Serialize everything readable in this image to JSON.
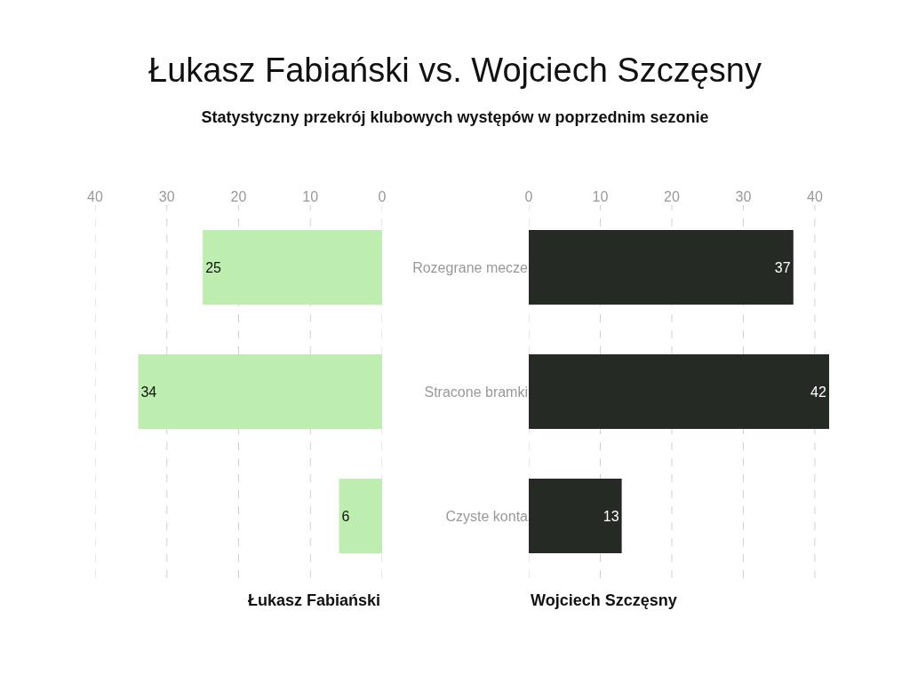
{
  "chart_data": [
    {
      "type": "bar",
      "title": "Łukasz Fabiański vs. Wojciech Szczęsny",
      "subtitle": "Statystyczny przekrój klubowych występów w poprzednim sezonie",
      "orientation": "horizontal",
      "categories": [
        null,
        null,
        null
      ],
      "values": [
        25,
        34,
        6
      ],
      "color": "#bdeeb0",
      "xlim": [
        40,
        0
      ],
      "xticks": [
        40,
        30,
        20,
        10,
        0
      ],
      "xlabel": "Łukasz Fabiański",
      "grid": "x",
      "data_labels": true
    },
    {
      "type": "bar",
      "orientation": "horizontal",
      "categories": [
        "Rozegrane mecze",
        "Stracone bramki",
        "Czyste konta"
      ],
      "values": [
        37,
        42,
        13
      ],
      "color": "#262a25",
      "xlim": [
        0,
        42
      ],
      "xticks": [
        0,
        10,
        20,
        30,
        40
      ],
      "xlabel": "Wojciech Szczęsny",
      "grid": "x",
      "data_labels": true
    }
  ]
}
